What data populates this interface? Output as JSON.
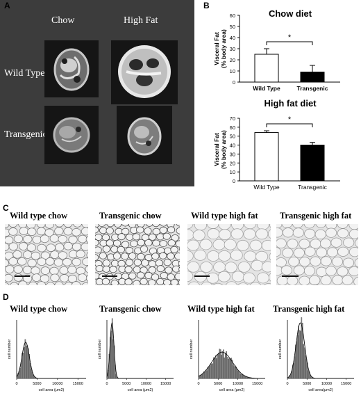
{
  "panels": {
    "a": "A",
    "b": "B",
    "c": "C",
    "d": "D"
  },
  "mri": {
    "col_labels": [
      "Chow",
      "High Fat"
    ],
    "row_labels": [
      "Wild Type",
      "Transgenic"
    ]
  },
  "chart_data": [
    {
      "type": "bar",
      "title": "Chow diet",
      "ylabel": "Visceral Fat (% body area)",
      "categories": [
        "Wild Type",
        "Transgenic"
      ],
      "values": [
        25,
        9
      ],
      "errors": [
        5,
        6
      ],
      "ylim": [
        0,
        60
      ],
      "yticks": [
        0,
        10,
        20,
        30,
        40,
        50,
        60
      ],
      "significance": "*",
      "colors": [
        "#ffffff",
        "#000000"
      ]
    },
    {
      "type": "bar",
      "title": "High fat diet",
      "ylabel": "Visceral Fat (% body area)",
      "categories": [
        "Wild Type",
        "Transgenic"
      ],
      "values": [
        54,
        40
      ],
      "errors": [
        2,
        3
      ],
      "ylim": [
        0,
        70
      ],
      "yticks": [
        0,
        10,
        20,
        30,
        40,
        50,
        60,
        70
      ],
      "significance": "*",
      "colors": [
        "#ffffff",
        "#000000"
      ]
    }
  ],
  "micrographs": {
    "titles": [
      "Wild type chow",
      "Transgenic chow",
      "Wild type high fat",
      "Transgenic high fat"
    ]
  },
  "histograms": {
    "titles": [
      "Wild type chow",
      "Transgenic chow",
      "Wild type high fat",
      "Transgenic high fat"
    ],
    "ylabel": "cell number",
    "xlabels": [
      "cell area (μm2)",
      "cell area (μm2)",
      "cell area (μm2)",
      "cell area(μm2)"
    ],
    "xticks": [
      "0",
      "5000",
      "10000",
      "15000"
    ]
  }
}
